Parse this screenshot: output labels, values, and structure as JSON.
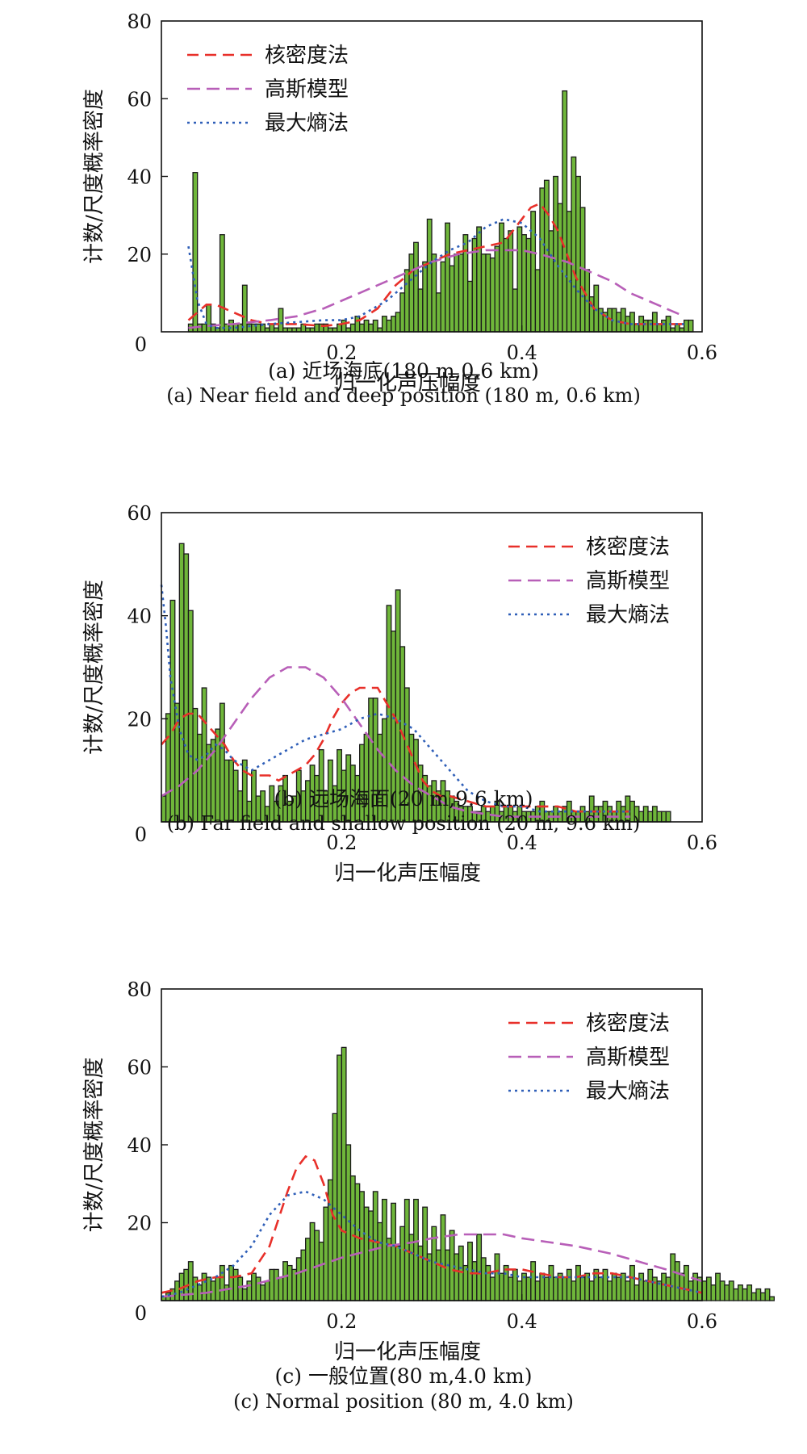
{
  "chart_data": [
    {
      "type": "bar",
      "panel": "a",
      "xlabel": "归一化声压幅度",
      "ylabel": "计数/尺度概率密度",
      "xlim": [
        0,
        0.6
      ],
      "ylim": [
        0,
        80
      ],
      "xticks": [
        "0",
        "0.2",
        "0.4",
        "0.6"
      ],
      "yticks": [
        "0",
        "20",
        "40",
        "60",
        "80"
      ],
      "legend_position": "top-left",
      "caption_zh": "(a) 近场海底(180 m,0.6 km)",
      "caption_en": "(a) Near field and deep position (180 m, 0.6 km)",
      "hist": {
        "start": 0.03,
        "bin_width": 0.005,
        "values": [
          2,
          41,
          2,
          2,
          7,
          2,
          1,
          25,
          2,
          3,
          2,
          2,
          12,
          2,
          2,
          2,
          2,
          1,
          2,
          1,
          6,
          1,
          1,
          1,
          1,
          2,
          1,
          1,
          2,
          2,
          2,
          1,
          1,
          2,
          3,
          1,
          2,
          4,
          2,
          3,
          2,
          3,
          1,
          4,
          3,
          4,
          5,
          10,
          16,
          20,
          23,
          11,
          18,
          29,
          20,
          10,
          18,
          28,
          17,
          20,
          20,
          25,
          13,
          24,
          27,
          20,
          20,
          19,
          22,
          28,
          24,
          26,
          11,
          27,
          25,
          24,
          31,
          16,
          37,
          39,
          26,
          40,
          33,
          62,
          31,
          45,
          40,
          32,
          16,
          9,
          12,
          6,
          5,
          6,
          6,
          5,
          6,
          4,
          5,
          2,
          4,
          3,
          3,
          5,
          2,
          3,
          4,
          1,
          2,
          1,
          3,
          3
        ]
      },
      "series": [
        {
          "name": "核密度法",
          "color": "#e8302a",
          "dash": "14 8",
          "x": [
            0.03,
            0.04,
            0.05,
            0.06,
            0.07,
            0.08,
            0.1,
            0.12,
            0.15,
            0.18,
            0.2,
            0.22,
            0.24,
            0.26,
            0.28,
            0.3,
            0.32,
            0.34,
            0.36,
            0.38,
            0.39,
            0.4,
            0.41,
            0.42,
            0.43,
            0.44,
            0.45,
            0.46,
            0.48,
            0.5,
            0.52,
            0.55,
            0.58
          ],
          "y": [
            3,
            5,
            7,
            7,
            6,
            5,
            3,
            2,
            2,
            1.5,
            2,
            3,
            6,
            12,
            16,
            18,
            20,
            21,
            22,
            23,
            26,
            29,
            32,
            33,
            30,
            26,
            20,
            14,
            6,
            3,
            2,
            2,
            2
          ]
        },
        {
          "name": "高斯模型",
          "color": "#b85fb8",
          "dash": "16 8",
          "x": [
            0.03,
            0.05,
            0.08,
            0.1,
            0.12,
            0.15,
            0.18,
            0.2,
            0.22,
            0.25,
            0.28,
            0.3,
            0.33,
            0.36,
            0.38,
            0.4,
            0.42,
            0.45,
            0.48,
            0.5,
            0.52,
            0.55,
            0.58
          ],
          "y": [
            1,
            1.5,
            2,
            2.5,
            3,
            4,
            6,
            8,
            10,
            13,
            16,
            18,
            20,
            21,
            21,
            21,
            20,
            18,
            15,
            13,
            10,
            7,
            4
          ]
        },
        {
          "name": "最大熵法",
          "color": "#2f5fb8",
          "dash": "3 5",
          "x": [
            0.03,
            0.035,
            0.04,
            0.05,
            0.06,
            0.08,
            0.1,
            0.12,
            0.15,
            0.18,
            0.2,
            0.22,
            0.25,
            0.28,
            0.3,
            0.32,
            0.34,
            0.36,
            0.38,
            0.4,
            0.42,
            0.44,
            0.46,
            0.48,
            0.5,
            0.52,
            0.55,
            0.58
          ],
          "y": [
            22,
            15,
            8,
            2,
            1,
            1,
            1.5,
            2,
            2.5,
            3,
            3,
            4,
            8,
            14,
            18,
            21,
            23,
            27,
            29,
            28,
            24,
            17,
            11,
            6,
            3,
            2,
            2,
            2
          ]
        }
      ]
    },
    {
      "type": "bar",
      "panel": "b",
      "xlabel": "归一化声压幅度",
      "ylabel": "计数/尺度概率密度",
      "xlim": [
        0,
        0.6
      ],
      "ylim": [
        0,
        60
      ],
      "xticks": [
        "0",
        "0.2",
        "0.4",
        "0.6"
      ],
      "yticks": [
        "0",
        "20",
        "40",
        "60"
      ],
      "legend_position": "top-right",
      "caption_zh": "(b) 远场海面(20 m,9.6 km)",
      "caption_en": "(b) Far field and shallow position (20 m, 9.6 km)",
      "hist": {
        "start": 0.0,
        "bin_width": 0.005,
        "values": [
          5,
          21,
          43,
          23,
          54,
          52,
          41,
          22,
          17,
          26,
          15,
          16,
          18,
          23,
          12,
          12,
          10,
          6,
          12,
          4,
          10,
          5,
          6,
          3,
          7,
          4,
          7,
          9,
          4,
          5,
          10,
          6,
          8,
          11,
          9,
          14,
          6,
          12,
          7,
          14,
          10,
          13,
          11,
          9,
          15,
          17,
          24,
          24,
          17,
          20,
          42,
          37,
          45,
          34,
          26,
          17,
          16,
          11,
          9,
          7,
          8,
          6,
          8,
          6,
          5,
          4,
          3,
          3,
          3,
          2,
          2,
          3,
          2,
          3,
          4,
          2,
          3,
          3,
          2,
          3,
          2,
          2,
          2,
          3,
          4,
          2,
          2,
          3,
          2,
          3,
          4,
          2,
          2,
          3,
          2,
          5,
          3,
          3,
          4,
          3,
          2,
          4,
          3,
          5,
          4,
          3,
          2,
          3,
          2,
          3,
          2,
          2,
          2
        ]
      },
      "series": [
        {
          "name": "核密度法",
          "color": "#e8302a",
          "dash": "14 8",
          "x": [
            0,
            0.01,
            0.02,
            0.03,
            0.04,
            0.05,
            0.06,
            0.07,
            0.08,
            0.09,
            0.1,
            0.11,
            0.12,
            0.13,
            0.14,
            0.15,
            0.16,
            0.17,
            0.18,
            0.19,
            0.2,
            0.21,
            0.22,
            0.23,
            0.24,
            0.25,
            0.26,
            0.27,
            0.28,
            0.29,
            0.3,
            0.31,
            0.32,
            0.34,
            0.36,
            0.38,
            0.4,
            0.42,
            0.44,
            0.46,
            0.48,
            0.5,
            0.52
          ],
          "y": [
            15,
            17,
            20,
            21,
            21,
            19,
            17,
            15,
            12,
            10,
            9,
            9,
            9,
            8,
            9,
            10,
            11,
            13,
            16,
            20,
            23,
            25,
            26,
            26,
            26,
            23,
            20,
            16,
            12,
            8,
            6,
            5,
            5,
            4,
            3,
            3,
            3,
            3,
            3,
            2,
            2,
            2,
            2
          ]
        },
        {
          "name": "高斯模型",
          "color": "#b85fb8",
          "dash": "16 8",
          "x": [
            0,
            0.02,
            0.04,
            0.06,
            0.08,
            0.1,
            0.12,
            0.14,
            0.15,
            0.16,
            0.18,
            0.2,
            0.22,
            0.24,
            0.26,
            0.28,
            0.3,
            0.32,
            0.34,
            0.36,
            0.38,
            0.4,
            0.42,
            0.45,
            0.48,
            0.5,
            0.52
          ],
          "y": [
            5,
            7,
            10,
            14,
            19,
            24,
            28,
            30,
            30,
            30,
            28,
            24,
            19,
            14,
            10,
            7,
            5,
            3,
            2,
            1.5,
            1,
            1,
            1,
            1,
            1,
            1,
            1
          ]
        },
        {
          "name": "最大熵法",
          "color": "#2f5fb8",
          "dash": "3 5",
          "x": [
            0,
            0.005,
            0.01,
            0.02,
            0.03,
            0.04,
            0.05,
            0.06,
            0.07,
            0.08,
            0.09,
            0.1,
            0.11,
            0.12,
            0.13,
            0.14,
            0.15,
            0.16,
            0.18,
            0.2,
            0.22,
            0.24,
            0.26,
            0.28,
            0.3,
            0.32,
            0.34,
            0.36,
            0.38,
            0.4,
            0.42,
            0.44,
            0.46,
            0.48,
            0.5,
            0.52
          ],
          "y": [
            46,
            38,
            28,
            18,
            13,
            12,
            13,
            15,
            14,
            12,
            11,
            10,
            11,
            12,
            13,
            14,
            15,
            16,
            17,
            18,
            20,
            21,
            20,
            18,
            14,
            10,
            6,
            4,
            3,
            3,
            2,
            2,
            2,
            2,
            2,
            2
          ]
        }
      ]
    },
    {
      "type": "bar",
      "panel": "c",
      "xlabel": "归一化声压幅度",
      "ylabel": "计数/尺度概率密度",
      "xlim": [
        0,
        0.6
      ],
      "ylim": [
        0,
        80
      ],
      "xticks": [
        "0",
        "0.2",
        "0.4",
        "0.6"
      ],
      "yticks": [
        "0",
        "20",
        "40",
        "60",
        "80"
      ],
      "legend_position": "top-right",
      "caption_zh": "(c) 一般位置(80 m,4.0 km)",
      "caption_en": "(c) Normal position (80 m, 4.0 km)",
      "hist": {
        "start": 0.0,
        "bin_width": 0.005,
        "values": [
          1,
          2,
          3,
          5,
          7,
          8,
          10,
          6,
          4,
          7,
          6,
          5,
          6,
          9,
          4,
          9,
          8,
          6,
          3,
          5,
          7,
          6,
          4,
          5,
          8,
          8,
          6,
          10,
          9,
          8,
          11,
          13,
          16,
          20,
          18,
          15,
          24,
          31,
          48,
          63,
          65,
          40,
          32,
          30,
          28,
          24,
          23,
          28,
          20,
          26,
          16,
          25,
          14,
          19,
          26,
          17,
          26,
          14,
          24,
          12,
          19,
          13,
          22,
          13,
          18,
          12,
          14,
          9,
          15,
          10,
          17,
          11,
          9,
          6,
          12,
          7,
          9,
          6,
          8,
          5,
          7,
          6,
          10,
          5,
          7,
          6,
          9,
          6,
          7,
          6,
          8,
          5,
          9,
          6,
          7,
          5,
          8,
          6,
          8,
          5,
          7,
          6,
          7,
          5,
          9,
          4,
          7,
          5,
          8,
          6,
          5,
          7,
          6,
          12,
          10,
          7,
          9,
          5,
          7,
          6,
          5,
          6,
          4,
          7,
          5,
          4,
          5,
          3,
          4,
          3,
          4,
          2,
          3,
          2,
          3,
          1
        ]
      },
      "series": [
        {
          "name": "核密度法",
          "color": "#e8302a",
          "dash": "14 8",
          "x": [
            0,
            0.02,
            0.04,
            0.06,
            0.08,
            0.1,
            0.12,
            0.13,
            0.14,
            0.15,
            0.16,
            0.17,
            0.18,
            0.19,
            0.2,
            0.22,
            0.24,
            0.26,
            0.28,
            0.3,
            0.32,
            0.34,
            0.36,
            0.38,
            0.4,
            0.42,
            0.44,
            0.46,
            0.48,
            0.5,
            0.52,
            0.54,
            0.56,
            0.58,
            0.6
          ],
          "y": [
            2,
            3,
            5,
            6,
            6,
            7,
            14,
            21,
            28,
            34,
            37,
            36,
            30,
            22,
            18,
            16,
            15,
            14,
            12,
            10,
            8,
            7,
            7,
            8,
            8,
            7,
            6,
            6,
            7,
            7,
            6,
            5,
            4,
            3,
            2
          ]
        },
        {
          "name": "高斯模型",
          "color": "#b85fb8",
          "dash": "16 8",
          "x": [
            0,
            0.05,
            0.1,
            0.15,
            0.2,
            0.25,
            0.28,
            0.3,
            0.33,
            0.36,
            0.38,
            0.4,
            0.43,
            0.46,
            0.5,
            0.53,
            0.56,
            0.6
          ],
          "y": [
            1,
            2,
            4,
            7,
            11,
            14,
            15,
            16,
            17,
            17,
            17,
            16,
            15,
            14,
            12,
            10,
            8,
            5
          ]
        },
        {
          "name": "最大熵法",
          "color": "#2f5fb8",
          "dash": "3 5",
          "x": [
            0,
            0.02,
            0.04,
            0.06,
            0.08,
            0.1,
            0.12,
            0.14,
            0.16,
            0.18,
            0.2,
            0.22,
            0.24,
            0.26,
            0.28,
            0.3,
            0.32,
            0.34,
            0.36,
            0.38,
            0.4,
            0.42,
            0.44,
            0.46,
            0.48,
            0.5,
            0.52,
            0.54,
            0.56,
            0.58,
            0.6
          ],
          "y": [
            1,
            2,
            4,
            6,
            9,
            14,
            22,
            27,
            28,
            26,
            22,
            18,
            15,
            14,
            12,
            10,
            9,
            8,
            7,
            7,
            6,
            6,
            6,
            6,
            6,
            6,
            6,
            5,
            4,
            3,
            2
          ]
        }
      ]
    }
  ]
}
